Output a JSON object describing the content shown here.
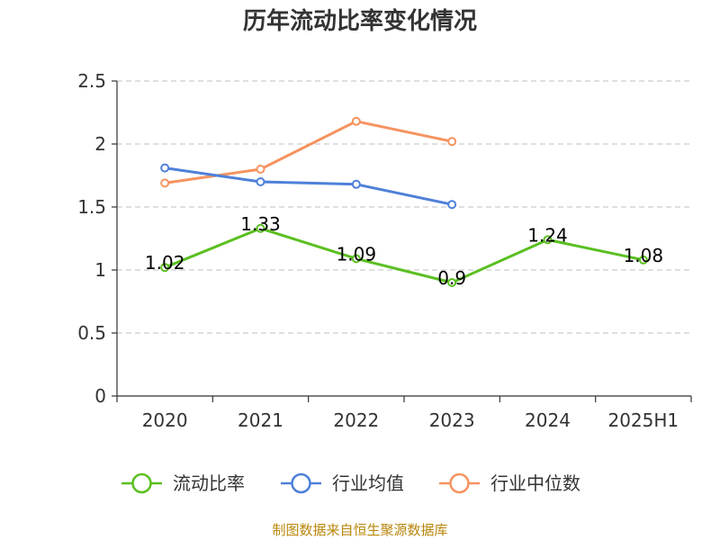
{
  "chart_data": {
    "type": "line",
    "title": "历年流动比率变化情况",
    "xlabel": "",
    "ylabel": "",
    "categories": [
      "2020",
      "2021",
      "2022",
      "2023",
      "2024",
      "2025H1"
    ],
    "ylim": [
      0,
      2.5
    ],
    "yticks": [
      "0",
      "0.5",
      "1",
      "1.5",
      "2",
      "2.5"
    ],
    "grid": true,
    "legend_position": "bottom",
    "series": [
      {
        "name": "流动比率",
        "color": "#5bbf21",
        "values": [
          1.02,
          1.33,
          1.09,
          0.9,
          1.24,
          1.08
        ],
        "labels": [
          "1.02",
          "1.33",
          "1.09",
          "0.9",
          "1.24",
          "1.08"
        ]
      },
      {
        "name": "行业均值",
        "color": "#4e80d9",
        "values": [
          1.81,
          1.7,
          1.68,
          1.52,
          null,
          null
        ]
      },
      {
        "name": "行业中位数",
        "color": "#f59360",
        "values": [
          1.69,
          1.8,
          2.18,
          2.02,
          null,
          null
        ]
      }
    ]
  },
  "source": "制图数据来自恒生聚源数据库"
}
